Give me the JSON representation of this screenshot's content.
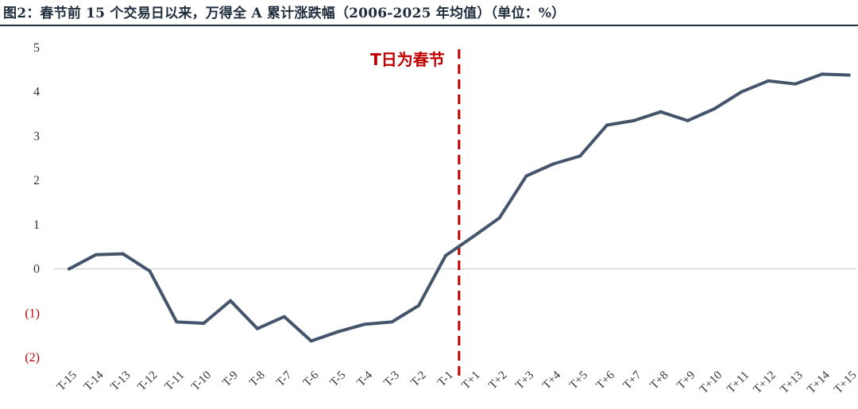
{
  "title": "图2：春节前 15 个交易日以来，万得全 A 累计涨跌幅（2006-2025 年均值）（单位：%）",
  "colors": {
    "line": "#44546a",
    "negative_label": "#c00000",
    "marker": "#c00000",
    "text": "#333333",
    "title": "#1f2d3d"
  },
  "chart_data": {
    "type": "line",
    "categories": [
      "T-15",
      "T-14",
      "T-13",
      "T-12",
      "T-11",
      "T-10",
      "T-9",
      "T-8",
      "T-7",
      "T-6",
      "T-5",
      "T-4",
      "T-3",
      "T-2",
      "T-1",
      "T+1",
      "T+2",
      "T+3",
      "T+4",
      "T+5",
      "T+6",
      "T+7",
      "T+8",
      "T+9",
      "T+10",
      "T+11",
      "T+12",
      "T+13",
      "T+14",
      "T+15"
    ],
    "series": [
      {
        "values": [
          0.0,
          0.32,
          0.34,
          -0.05,
          -1.2,
          -1.23,
          -0.72,
          -1.35,
          -1.08,
          -1.63,
          -1.42,
          -1.25,
          -1.2,
          -0.83,
          0.3,
          0.72,
          1.15,
          2.1,
          2.37,
          2.55,
          3.25,
          3.35,
          3.55,
          3.35,
          3.62,
          4.0,
          4.25,
          4.18,
          4.4,
          4.38
        ]
      }
    ],
    "ylim": [
      -2,
      5
    ],
    "yticks": [
      -2,
      -1,
      0,
      1,
      2,
      3,
      4,
      5
    ],
    "ytick_labels": [
      "(2)",
      "(1)",
      "0",
      "1",
      "2",
      "3",
      "4",
      "5"
    ],
    "grid": false,
    "marker_line": {
      "between": [
        "T-1",
        "T+1"
      ],
      "label": "T日为春节"
    }
  }
}
